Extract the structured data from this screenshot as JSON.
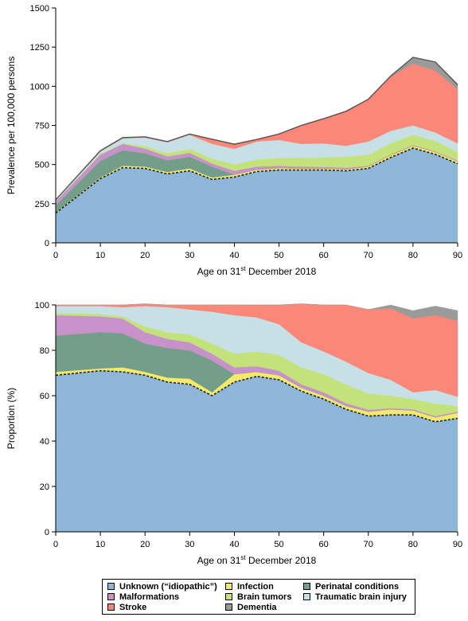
{
  "legend": {
    "items": [
      {
        "label": "Unknown (“idiopathic”)",
        "color": "#8db6d8"
      },
      {
        "label": "Infection",
        "color": "#f3e96a"
      },
      {
        "label": "Perinatal conditions",
        "color": "#739f8a"
      },
      {
        "label": "Malformations",
        "color": "#c692c9"
      },
      {
        "label": "Brain tumors",
        "color": "#c3e27a"
      },
      {
        "label": "Traumatic brain injury",
        "color": "#c6e0e6"
      },
      {
        "label": "Stroke",
        "color": "#fa8777"
      },
      {
        "label": "Dementia",
        "color": "#9a9a9a"
      }
    ]
  },
  "chart_data": [
    {
      "type": "area",
      "stacked": true,
      "ylabel": "Prevalence per 100,000 persons",
      "xlabel_main": "Age on 31",
      "xlabel_sup": "st",
      "xlabel_rest": " December 2018",
      "xlim": [
        0,
        90
      ],
      "ylim": [
        0,
        1500
      ],
      "xticks": [
        0,
        10,
        20,
        30,
        40,
        50,
        60,
        70,
        80,
        90
      ],
      "yticks": [
        0,
        250,
        500,
        750,
        1000,
        1250,
        1500
      ],
      "grid": false,
      "x": [
        0,
        10,
        15,
        20,
        25,
        30,
        35,
        40,
        45,
        50,
        55,
        60,
        65,
        70,
        75,
        80,
        85,
        90
      ],
      "series": [
        {
          "name": "Unknown (“idiopathic”)",
          "color": "#8db6d8",
          "values": [
            190,
            410,
            480,
            475,
            440,
            460,
            405,
            420,
            455,
            465,
            465,
            465,
            460,
            475,
            545,
            605,
            565,
            505
          ]
        },
        {
          "name": "Infection",
          "color": "#f3e96a",
          "values": [
            5,
            8,
            12,
            12,
            12,
            15,
            12,
            15,
            12,
            12,
            10,
            10,
            10,
            12,
            15,
            15,
            15,
            15
          ]
        },
        {
          "name": "Perinatal conditions",
          "color": "#739f8a",
          "values": [
            45,
            105,
            100,
            85,
            75,
            75,
            70,
            0,
            0,
            0,
            0,
            0,
            0,
            0,
            0,
            0,
            0,
            0
          ]
        },
        {
          "name": "Malformations",
          "color": "#c692c9",
          "values": [
            25,
            40,
            40,
            30,
            25,
            25,
            20,
            25,
            20,
            15,
            12,
            10,
            10,
            5,
            5,
            5,
            5,
            5
          ]
        },
        {
          "name": "Brain tumors",
          "color": "#c3e27a",
          "values": [
            5,
            5,
            5,
            15,
            20,
            25,
            30,
            40,
            45,
            50,
            55,
            60,
            70,
            70,
            70,
            65,
            65,
            55
          ]
        },
        {
          "name": "Traumatic brain injury",
          "color": "#c6e0e6",
          "values": [
            5,
            15,
            30,
            55,
            70,
            90,
            95,
            100,
            115,
            115,
            90,
            90,
            70,
            85,
            80,
            60,
            55,
            55
          ]
        },
        {
          "name": "Stroke",
          "color": "#fa8777",
          "values": [
            0,
            5,
            5,
            5,
            5,
            5,
            30,
            30,
            13,
            38,
            118,
            158,
            220,
            270,
            345,
            395,
            395,
            345
          ]
        },
        {
          "name": "Dementia",
          "color": "#9a9a9a",
          "values": [
            0,
            0,
            0,
            0,
            0,
            0,
            0,
            0,
            0,
            0,
            0,
            0,
            0,
            0,
            5,
            40,
            55,
            30
          ]
        }
      ]
    },
    {
      "type": "area",
      "stacked": true,
      "ylabel": "Proportion (%)",
      "xlabel_main": "Age on 31",
      "xlabel_sup": "st",
      "xlabel_rest": " December 2018",
      "xlim": [
        0,
        90
      ],
      "ylim": [
        0,
        100
      ],
      "xticks": [
        0,
        10,
        20,
        30,
        40,
        50,
        60,
        70,
        80,
        90
      ],
      "yticks": [
        0,
        20,
        40,
        60,
        80,
        100
      ],
      "grid": false,
      "x": [
        0,
        10,
        15,
        20,
        25,
        30,
        35,
        40,
        45,
        50,
        55,
        60,
        65,
        70,
        75,
        80,
        85,
        90
      ],
      "series": [
        {
          "name": "Unknown (“idiopathic”)",
          "color": "#8db6d8",
          "values": [
            69,
            71,
            70.5,
            69,
            66,
            65,
            60,
            66,
            68.5,
            67,
            62,
            58.5,
            54,
            51,
            51.5,
            51.5,
            48.5,
            50
          ]
        },
        {
          "name": "Infection",
          "color": "#f3e96a",
          "values": [
            1.5,
            1,
            2,
            1.5,
            2,
            2.5,
            1.5,
            3.5,
            2,
            2,
            1.5,
            1.5,
            1.5,
            2,
            2.5,
            2,
            2,
            2.5
          ]
        },
        {
          "name": "Perinatal conditions",
          "color": "#739f8a",
          "values": [
            16,
            16,
            15,
            12.5,
            13,
            12.5,
            14,
            0,
            0,
            0,
            0,
            0,
            0,
            0,
            0,
            0,
            0,
            0
          ]
        },
        {
          "name": "Malformations",
          "color": "#c692c9",
          "values": [
            9,
            7,
            6.5,
            5,
            4,
            3.5,
            3,
            3,
            2.5,
            2,
            1.5,
            1.5,
            1.2,
            0.8,
            0.5,
            0.5,
            0.5,
            0.5
          ]
        },
        {
          "name": "Brain tumors",
          "color": "#c3e27a",
          "values": [
            1,
            1,
            1,
            2.5,
            3,
            3.5,
            4.5,
            6,
            6.5,
            7,
            7.5,
            8,
            8.3,
            7.2,
            5.5,
            4.5,
            5.5,
            2.5
          ]
        },
        {
          "name": "Traumatic brain injury",
          "color": "#c6e0e6",
          "values": [
            3,
            3.5,
            4,
            9,
            11,
            11,
            14,
            17,
            15,
            13.5,
            11,
            10,
            10,
            9,
            7,
            3,
            6,
            4
          ]
        },
        {
          "name": "Stroke",
          "color": "#fa8777",
          "values": [
            0.5,
            0.5,
            1,
            1,
            1,
            2,
            3,
            4.5,
            5.5,
            8.5,
            17,
            20.5,
            25,
            28,
            31.5,
            32.5,
            33,
            33.5
          ]
        },
        {
          "name": "Dementia",
          "color": "#9a9a9a",
          "values": [
            0,
            0,
            0,
            0,
            0,
            0,
            0,
            0,
            0,
            0,
            0,
            0,
            0,
            0,
            1.5,
            3.5,
            4,
            4.5
          ]
        }
      ]
    }
  ]
}
